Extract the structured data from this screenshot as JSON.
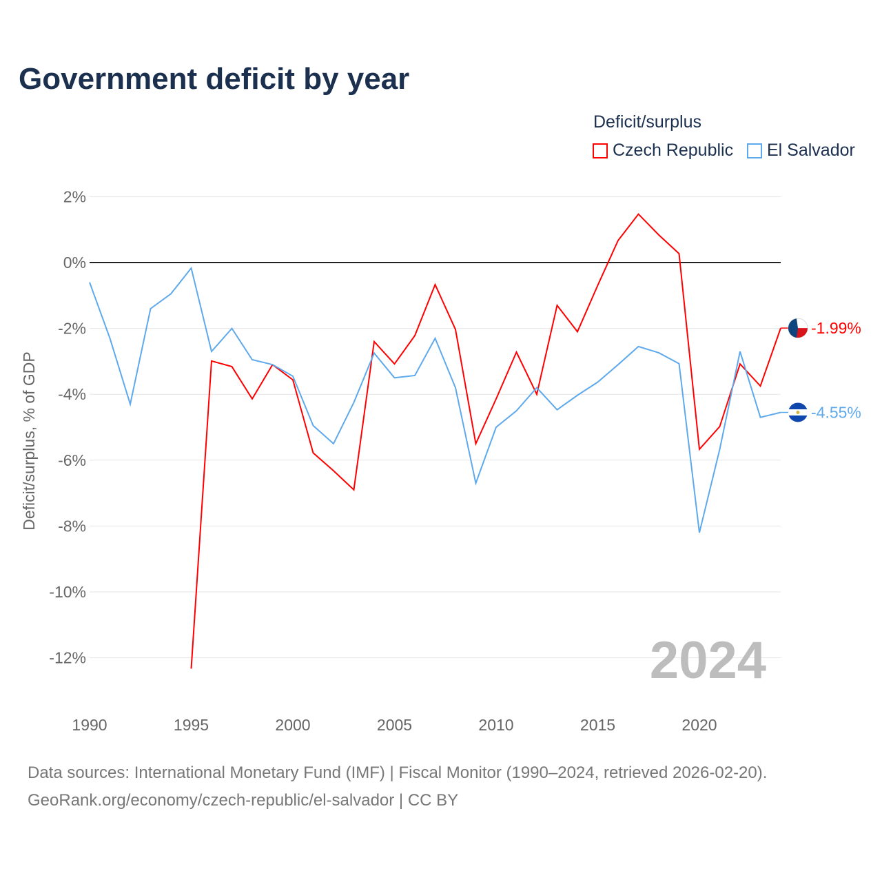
{
  "title": "Government deficit by year",
  "legend_title": "Deficit/surplus",
  "source_line1": "Data sources: International Monetary Fund (IMF) | Fiscal Monitor (1990–2024, retrieved 2026-02-20).",
  "source_line2": "GeoRank.org/economy/czech-republic/el-salvador | CC BY",
  "chart_data": {
    "type": "line",
    "title": "Government deficit by year",
    "ylabel": "Deficit/surplus, % of GDP",
    "xlabel": "",
    "xlim": [
      1990,
      2024
    ],
    "ylim": [
      -12.5,
      2.2
    ],
    "xticks": [
      1990,
      1995,
      2000,
      2005,
      2010,
      2015,
      2020
    ],
    "xtick_labels": [
      "1990",
      "1995",
      "2000",
      "2005",
      "2010",
      "2015",
      "2020"
    ],
    "yticks": [
      2,
      0,
      -2,
      -4,
      -6,
      -8,
      -10,
      -12
    ],
    "ytick_labels": [
      "2%",
      "0%",
      "-2%",
      "-4%",
      "-6%",
      "-8%",
      "-10%",
      "-12%"
    ],
    "year_label": "2024",
    "grid": true,
    "legend_position": "top-right",
    "series": [
      {
        "name": "Czech Republic",
        "color": "#ff0000",
        "end_label": "-1.99%",
        "x": [
          1995,
          1996,
          1997,
          1998,
          1999,
          2000,
          2001,
          2002,
          2003,
          2004,
          2005,
          2006,
          2007,
          2008,
          2009,
          2010,
          2011,
          2012,
          2013,
          2014,
          2015,
          2016,
          2017,
          2018,
          2019,
          2020,
          2021,
          2022,
          2023,
          2024
        ],
        "values": [
          -12.33,
          -2.99,
          -3.16,
          -4.14,
          -3.1,
          -3.56,
          -5.78,
          -6.32,
          -6.9,
          -2.4,
          -3.08,
          -2.22,
          -0.67,
          -2.03,
          -5.5,
          -4.14,
          -2.72,
          -4.0,
          -1.3,
          -2.1,
          -0.69,
          0.67,
          1.47,
          0.84,
          0.27,
          -5.67,
          -4.98,
          -3.08,
          -3.75,
          -1.99
        ]
      },
      {
        "name": "El Salvador",
        "color": "#5ea9ec",
        "end_label": "-4.55%",
        "x": [
          1990,
          1991,
          1992,
          1993,
          1994,
          1995,
          1996,
          1997,
          1998,
          1999,
          2000,
          2001,
          2002,
          2003,
          2004,
          2005,
          2006,
          2007,
          2008,
          2009,
          2010,
          2011,
          2012,
          2013,
          2014,
          2015,
          2016,
          2017,
          2018,
          2019,
          2020,
          2021,
          2022,
          2023,
          2024
        ],
        "values": [
          -0.6,
          -2.3,
          -4.3,
          -1.4,
          -0.95,
          -0.17,
          -2.7,
          -2.0,
          -2.95,
          -3.1,
          -3.45,
          -4.95,
          -5.5,
          -4.25,
          -2.75,
          -3.5,
          -3.43,
          -2.3,
          -3.8,
          -6.7,
          -5.0,
          -4.5,
          -3.8,
          -4.47,
          -4.03,
          -3.63,
          -3.1,
          -2.55,
          -2.74,
          -3.07,
          -8.2,
          -5.67,
          -2.7,
          -4.7,
          -4.55
        ]
      }
    ]
  }
}
